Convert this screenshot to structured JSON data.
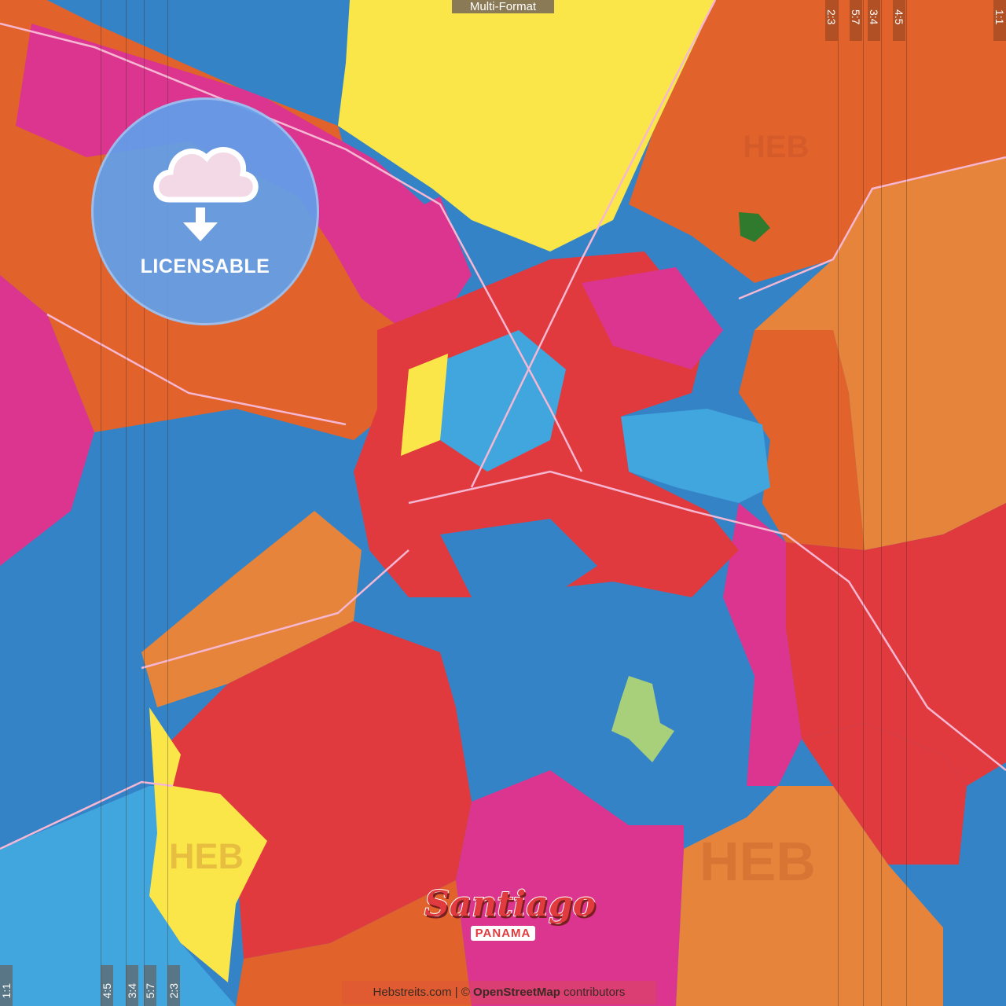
{
  "header": {
    "format_label": "Multi-Format"
  },
  "ratios_top": [
    "2:3",
    "5:7",
    "3:4",
    "4:5",
    "1:1"
  ],
  "ratios_bottom": [
    "1:1",
    "4:5",
    "3:4",
    "5:7",
    "2:3"
  ],
  "badge": {
    "label": "LICENSABLE",
    "icon": "cloud-download-icon"
  },
  "map": {
    "title": "Santiago",
    "subtitle": "PANAMA",
    "watermark": "HEB",
    "colors": {
      "orange": "#e2622b",
      "light_orange": "#e5843a",
      "pink": "#db3590",
      "red": "#e03a3e",
      "blue": "#3583c7",
      "light_blue": "#40a6dd",
      "yellow": "#fbe64a",
      "green": "#a8cf7a",
      "dark_green": "#2f7a2c"
    }
  },
  "attribution": {
    "site": "Hebstreits.com",
    "separator": " | © ",
    "osm": "OpenStreetMap",
    "suffix": " contributors"
  }
}
